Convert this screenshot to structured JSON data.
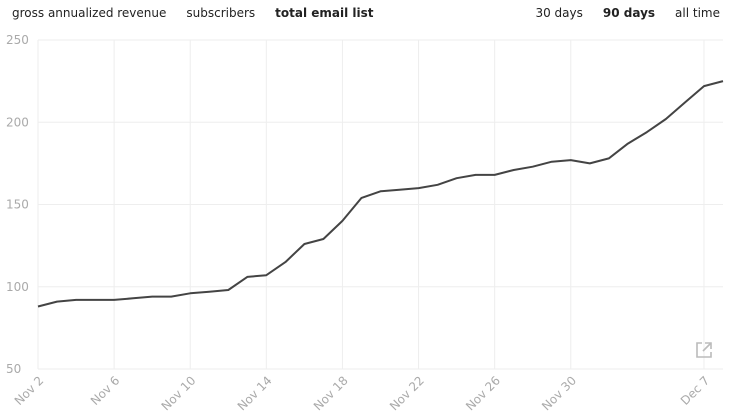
{
  "metric_tabs": [
    {
      "label": "gross annualized revenue",
      "active": false
    },
    {
      "label": "subscribers",
      "active": false
    },
    {
      "label": "total email list",
      "active": true
    }
  ],
  "range_tabs": [
    {
      "label": "30 days",
      "active": false
    },
    {
      "label": "90 days",
      "active": true
    },
    {
      "label": "all time",
      "active": false
    }
  ],
  "icons": {
    "expand": "external-link-icon"
  },
  "colors": {
    "line": "#444444",
    "grid": "#eeeeee",
    "tick": "#aaaaaa"
  },
  "chart_data": {
    "type": "line",
    "title": "",
    "xlabel": "",
    "ylabel": "",
    "ylim": [
      50,
      250
    ],
    "yticks": [
      50,
      100,
      150,
      200,
      250
    ],
    "x_tick_labels": [
      "Nov 2",
      "Nov 6",
      "Nov 10",
      "Nov 14",
      "Nov 18",
      "Nov 22",
      "Nov 26",
      "Nov 30",
      "Dec 7"
    ],
    "x_tick_indices": [
      0,
      4,
      8,
      12,
      16,
      20,
      24,
      28,
      35
    ],
    "grid": true,
    "series": [
      {
        "values": [
          88,
          91,
          92,
          92,
          92,
          93,
          94,
          94,
          96,
          97,
          98,
          106,
          107,
          115,
          126,
          129,
          140,
          154,
          158,
          159,
          160,
          162,
          166,
          168,
          168,
          171,
          173,
          176,
          177,
          175,
          178,
          187,
          194,
          202,
          212,
          222,
          225
        ]
      }
    ]
  }
}
